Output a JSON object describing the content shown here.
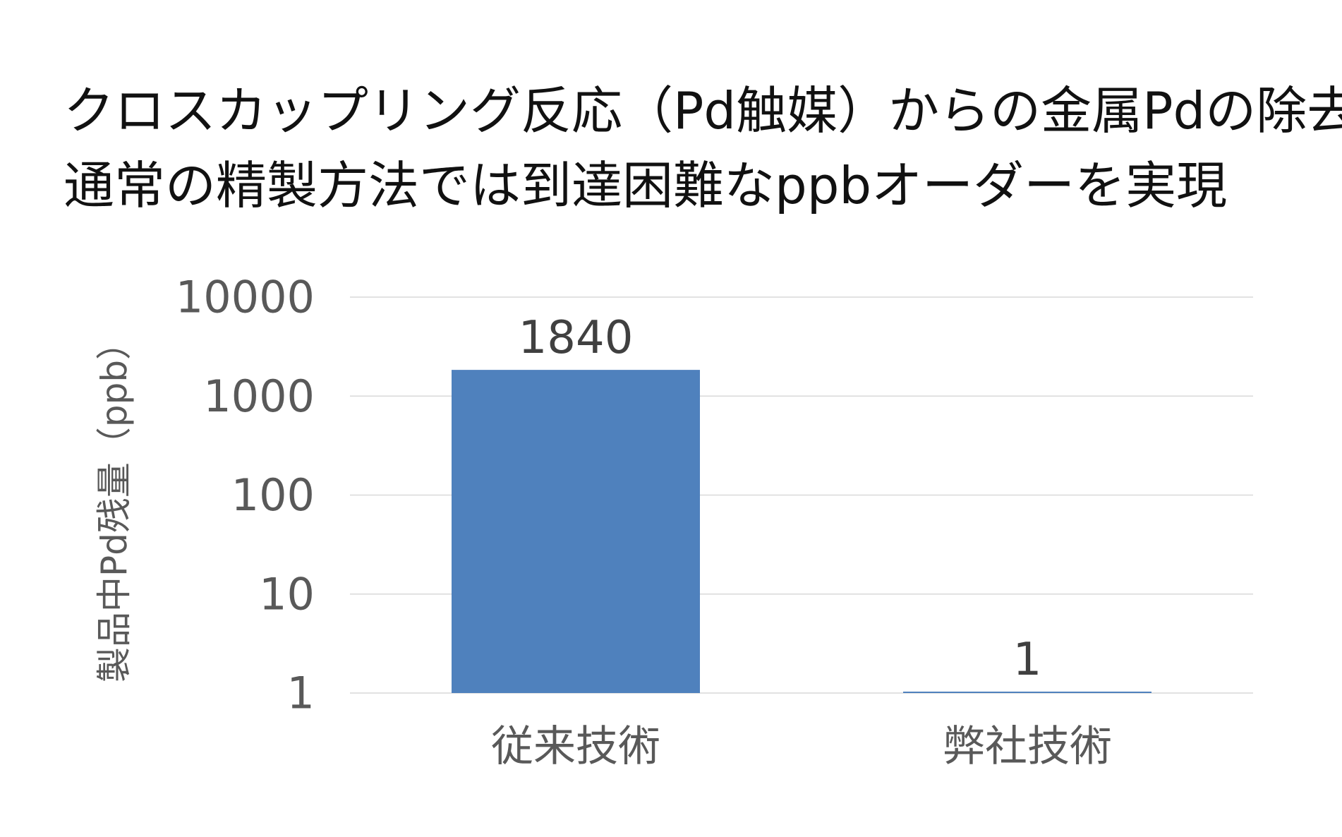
{
  "title_lines": [
    "クロスカップリング反応（Pd触媒）からの金属Pdの除去",
    "通常の精製方法では到達困難なppbオーダーを実現"
  ],
  "chart_data": {
    "type": "bar",
    "title": "クロスカップリング反応（Pd触媒）からの金属Pdの除去",
    "subtitle": "通常の精製方法では到達困難なppbオーダーを実現",
    "categories": [
      "従来技術",
      "弊社技術"
    ],
    "values": [
      1840,
      1
    ],
    "data_labels": [
      "1840",
      "1"
    ],
    "xlabel": "",
    "ylabel": "製品中Pd残量（ppb）",
    "yscale": "log",
    "ylim": [
      1,
      10000
    ],
    "yticks": [
      1,
      10,
      100,
      1000,
      10000
    ],
    "ytick_labels": [
      "1",
      "10",
      "100",
      "1000",
      "10000"
    ],
    "grid": true,
    "legend": "none",
    "bar_color": "#4f81bd",
    "grid_color": "#d9d9d9"
  }
}
